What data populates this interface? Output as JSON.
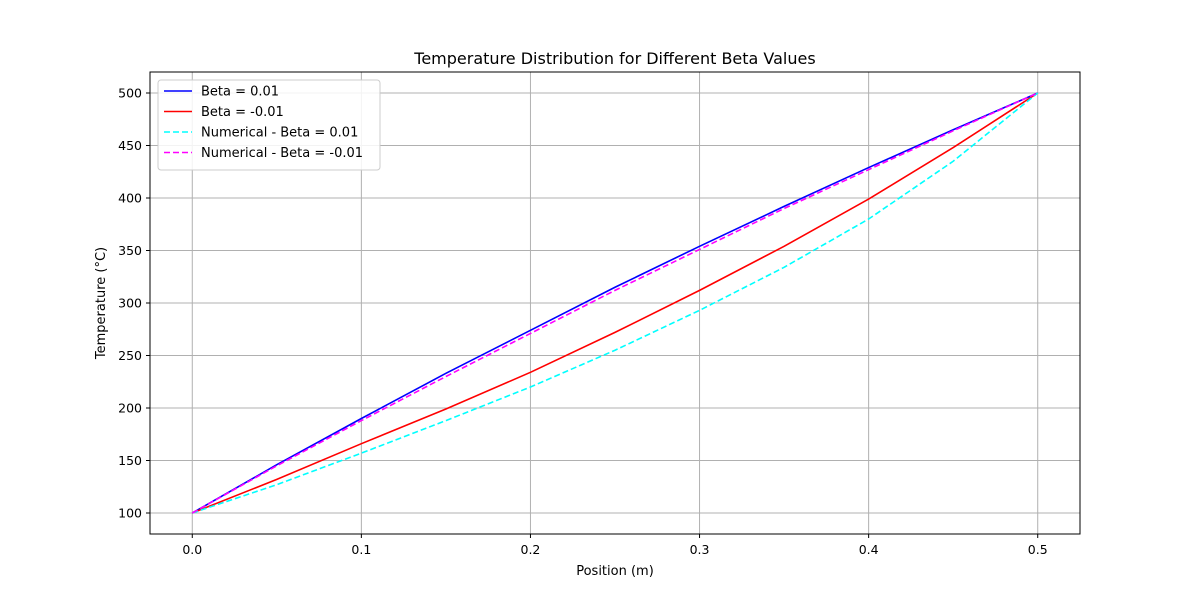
{
  "chart_data": {
    "type": "line",
    "title": "Temperature Distribution for Different Beta Values",
    "xlabel": "Position (m)",
    "ylabel": "Temperature (°C)",
    "xlim": [
      -0.025,
      0.525
    ],
    "ylim": [
      80,
      520
    ],
    "xticks": [
      0.0,
      0.1,
      0.2,
      0.3,
      0.4,
      0.5
    ],
    "xtick_labels": [
      "0.0",
      "0.1",
      "0.2",
      "0.3",
      "0.4",
      "0.5"
    ],
    "yticks": [
      100,
      150,
      200,
      250,
      300,
      350,
      400,
      450,
      500
    ],
    "ytick_labels": [
      "100",
      "150",
      "200",
      "250",
      "300",
      "350",
      "400",
      "450",
      "500"
    ],
    "grid": true,
    "legend_position": "upper-left",
    "series": [
      {
        "name": "Beta = 0.01",
        "color": "#0000ff",
        "style": "solid",
        "x": [
          0.0,
          0.05,
          0.1,
          0.15,
          0.2,
          0.25,
          0.3,
          0.35,
          0.4,
          0.45,
          0.5
        ],
        "y": [
          100,
          146,
          190,
          233,
          274,
          315,
          354,
          392,
          429,
          465,
          500
        ]
      },
      {
        "name": "Beta = -0.01",
        "color": "#ff0000",
        "style": "solid",
        "x": [
          0.0,
          0.05,
          0.1,
          0.15,
          0.2,
          0.25,
          0.3,
          0.35,
          0.4,
          0.45,
          0.5
        ],
        "y": [
          100,
          132,
          166,
          199,
          234,
          272,
          312,
          354,
          399,
          448,
          500
        ]
      },
      {
        "name": "Numerical - Beta = 0.01",
        "color": "#00ffff",
        "style": "dashed",
        "x": [
          0.0,
          0.05,
          0.1,
          0.15,
          0.2,
          0.25,
          0.3,
          0.35,
          0.4,
          0.45,
          0.5
        ],
        "y": [
          100,
          127,
          157,
          188,
          220,
          255,
          293,
          334,
          380,
          435,
          500
        ]
      },
      {
        "name": "Numerical - Beta = -0.01",
        "color": "#ff00ff",
        "style": "dashed",
        "x": [
          0.0,
          0.05,
          0.1,
          0.15,
          0.2,
          0.25,
          0.3,
          0.35,
          0.4,
          0.45,
          0.5
        ],
        "y": [
          100,
          145,
          188,
          230,
          271,
          312,
          351,
          390,
          427,
          464,
          500
        ]
      }
    ]
  }
}
